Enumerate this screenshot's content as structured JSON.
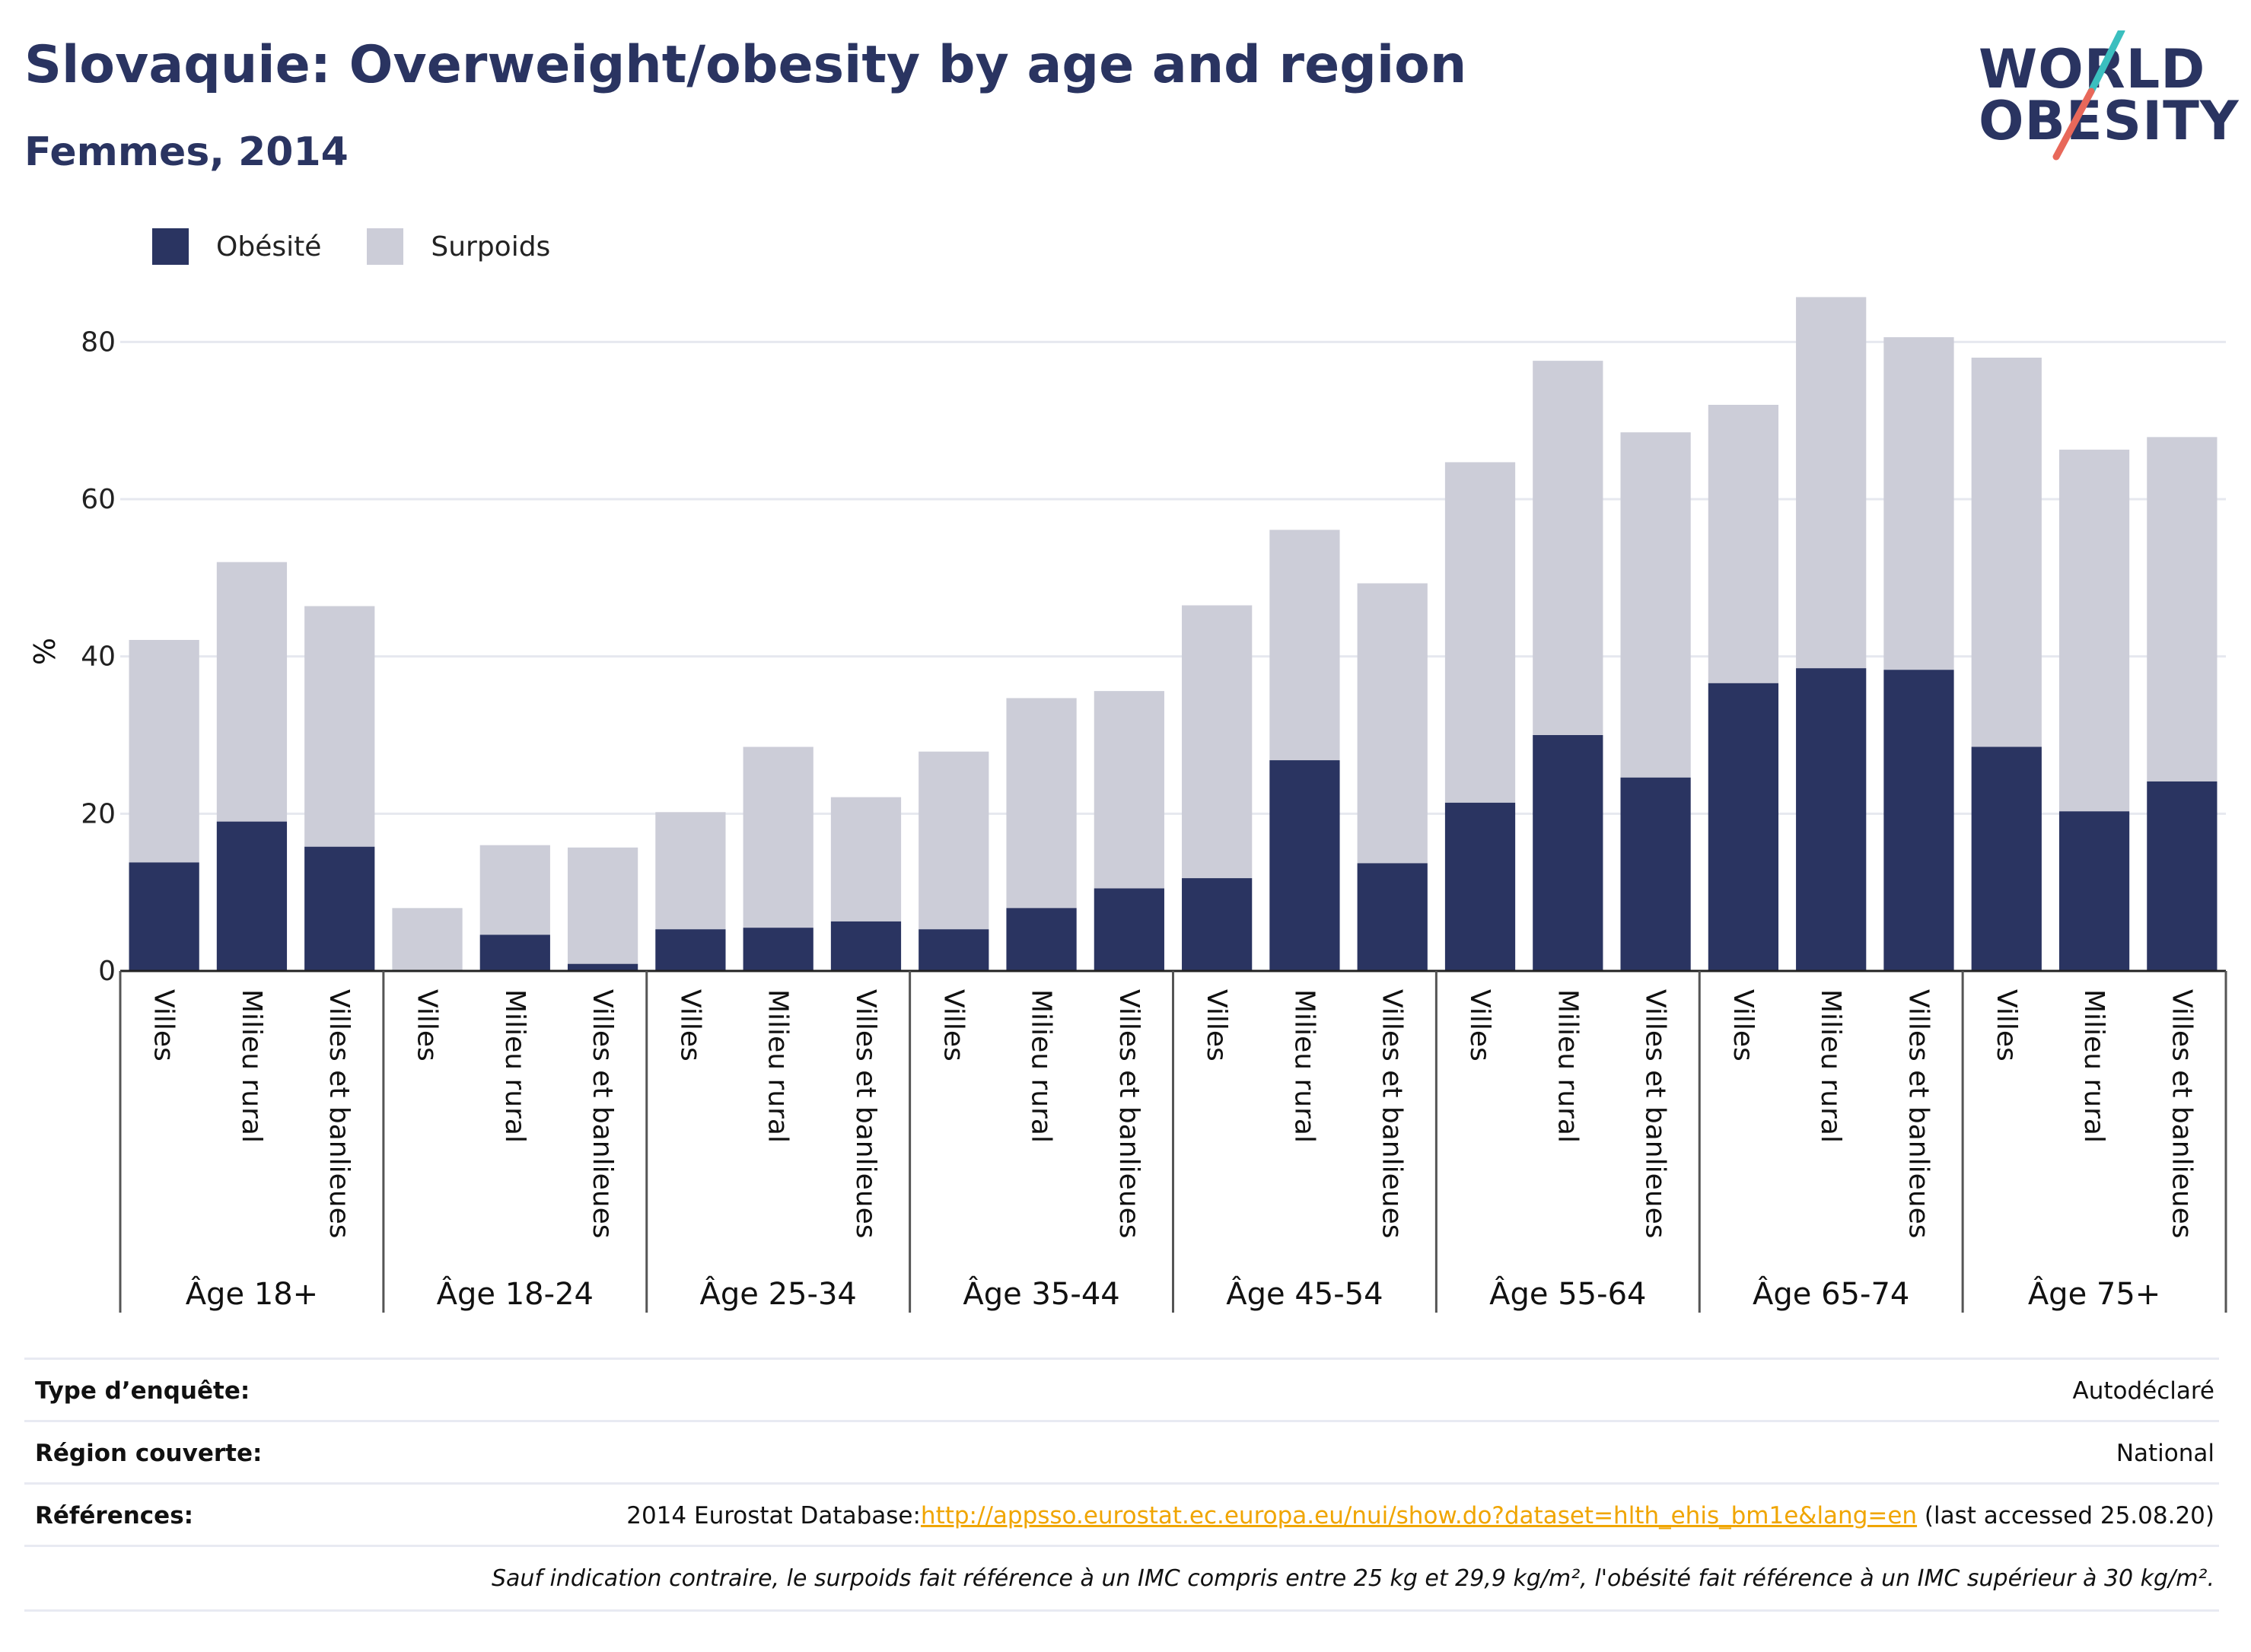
{
  "header": {
    "title": "Slovaquie: Overweight/obesity by age and region",
    "subtitle": "Femmes, 2014"
  },
  "logo": {
    "line1": "WORLD",
    "line2": "OBESITY"
  },
  "colors": {
    "obesite": "#2a3461",
    "surpoids": "#cccdd8",
    "link": "#f0a500",
    "logo_teal": "#3bbfbf",
    "logo_red": "#e8685a"
  },
  "legend": {
    "obesite": "Obésité",
    "surpoids": "Surpoids"
  },
  "chart_data": {
    "type": "bar",
    "stacked": true,
    "ylabel": "%",
    "ylim": [
      0,
      90
    ],
    "yticks": [
      0,
      20,
      40,
      60,
      80
    ],
    "grid": true,
    "legend_position": "top-left",
    "groups": [
      "Âge 18+",
      "Âge 18-24",
      "Âge 25-34",
      "Âge 35-44",
      "Âge 45-54",
      "Âge 55-64",
      "Âge 65-74",
      "Âge 75+"
    ],
    "categories": [
      "Villes",
      "Milieu rural",
      "Villes et banlieues"
    ],
    "series": [
      {
        "name": "Obésité",
        "values": [
          [
            13.8,
            19.0,
            15.8
          ],
          [
            0.0,
            4.6,
            0.9
          ],
          [
            5.3,
            5.5,
            6.3
          ],
          [
            5.3,
            8.0,
            10.5
          ],
          [
            11.8,
            26.8,
            13.7
          ],
          [
            21.4,
            30.0,
            24.6
          ],
          [
            36.6,
            38.5,
            38.3
          ],
          [
            28.5,
            20.3,
            24.1
          ]
        ]
      },
      {
        "name": "Surpoids",
        "values": [
          [
            28.3,
            33.0,
            30.6
          ],
          [
            8.0,
            11.4,
            14.8
          ],
          [
            14.9,
            23.0,
            15.8
          ],
          [
            22.6,
            26.7,
            25.1
          ],
          [
            34.7,
            29.3,
            35.6
          ],
          [
            43.3,
            47.6,
            43.9
          ],
          [
            35.4,
            47.2,
            42.3
          ],
          [
            49.5,
            46.0,
            43.8
          ]
        ]
      }
    ]
  },
  "info": {
    "survey_label": "Type d’enquête:",
    "survey_value": "Autodéclaré",
    "region_label": "Région couverte:",
    "region_value": "National",
    "refs_label": "Références:",
    "refs_prefix": "2014 Eurostat Database:",
    "refs_link": "http://appsso.eurostat.ec.europa.eu/nui/show.do?dataset=hlth_ehis_bm1e&lang=en",
    "refs_suffix": " (last accessed 25.08.20)",
    "note": "Sauf indication contraire, le surpoids fait référence à un IMC compris entre 25 kg et 29,9 kg/m², l'obésité fait référence à un IMC supérieur à 30 kg/m²."
  }
}
